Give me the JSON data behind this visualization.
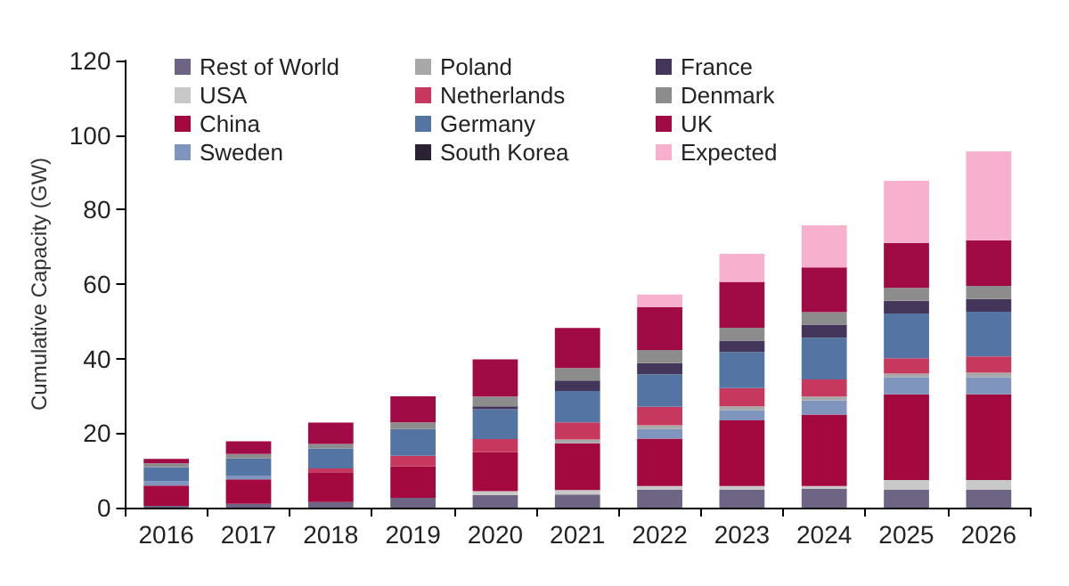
{
  "chart_data": {
    "type": "bar",
    "stacked": true,
    "ylabel": "Cumulative Capacity (GW)",
    "categories": [
      "2016",
      "2017",
      "2018",
      "2019",
      "2020",
      "2021",
      "2022",
      "2023",
      "2024",
      "2025",
      "2026"
    ],
    "ylim": [
      0,
      120
    ],
    "yticks": [
      0,
      20,
      40,
      60,
      80,
      100,
      120
    ],
    "grid": false,
    "legend": "top left",
    "series": [
      {
        "name": "Rest of World",
        "color": "#6e6584",
        "values": [
          0.5,
          1,
          1.5,
          2.6,
          3.4,
          3.5,
          4.8,
          4.8,
          5,
          4.8,
          4.8
        ]
      },
      {
        "name": "USA",
        "color": "#c8c8c8",
        "values": [
          0,
          0,
          0,
          0,
          1,
          1.2,
          1,
          1,
          0.8,
          2.6,
          2.6
        ]
      },
      {
        "name": "China",
        "color": "#a3093f",
        "values": [
          5.4,
          6.6,
          8,
          8.5,
          10.5,
          12.6,
          12.7,
          17.6,
          19.2,
          23,
          23
        ]
      },
      {
        "name": "Sweden",
        "color": "#7f95bd",
        "values": [
          1.2,
          1,
          0,
          0,
          0,
          0,
          2.6,
          2.8,
          3.8,
          4.6,
          4.6
        ]
      },
      {
        "name": "Poland",
        "color": "#a8a8a8",
        "values": [
          0,
          0,
          0,
          0,
          0,
          1,
          1,
          1,
          1,
          1,
          1.2
        ]
      },
      {
        "name": "Netherlands",
        "color": "#c7385f",
        "values": [
          0,
          0,
          1,
          2.8,
          3.5,
          4.6,
          5,
          4.9,
          4.6,
          4.1,
          4.4
        ]
      },
      {
        "name": "Germany",
        "color": "#5474a4",
        "values": [
          3.8,
          4.6,
          5.4,
          7.2,
          8,
          8.4,
          8.7,
          9.7,
          11.2,
          12,
          12
        ]
      },
      {
        "name": "South Korea",
        "color": "#2a2232",
        "values": [
          0,
          0,
          0,
          0,
          0,
          0,
          0,
          0,
          0,
          0,
          0
        ]
      },
      {
        "name": "France",
        "color": "#43365a",
        "values": [
          0,
          0,
          0,
          0,
          0.8,
          2.8,
          3,
          3,
          3.5,
          3.4,
          3.4
        ]
      },
      {
        "name": "Denmark",
        "color": "#8c8c8c",
        "values": [
          1,
          1.2,
          1.2,
          1.8,
          2.6,
          3.4,
          3.5,
          3.5,
          3.4,
          3.5,
          3.5
        ]
      },
      {
        "name": "UK",
        "color": "#a00a45",
        "values": [
          1.2,
          3.4,
          5.7,
          7,
          10,
          10.7,
          11.5,
          12.3,
          12,
          12,
          12.3
        ]
      },
      {
        "name": "Expected",
        "color": "#f7b1cf",
        "values": [
          0,
          0,
          0,
          0,
          0,
          0,
          3.4,
          7.5,
          11.3,
          16.7,
          23.8
        ]
      }
    ]
  }
}
